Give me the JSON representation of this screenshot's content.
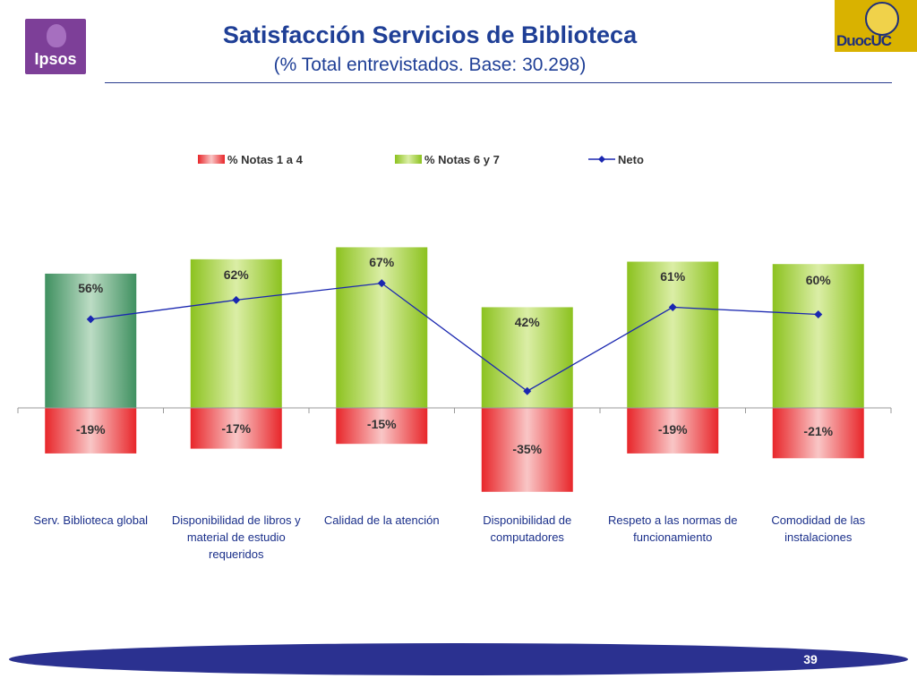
{
  "header": {
    "title": "Satisfacción Servicios de Biblioteca",
    "subtitle": "(% Total entrevistados. Base: 30.298)"
  },
  "logos": {
    "left": "Ipsos",
    "right": "DuocUC"
  },
  "footer": {
    "page_number": "39"
  },
  "colors": {
    "title": "#1f3f96",
    "positive_bar": "#8cc21f",
    "positive_bar_first": "#3f9060",
    "negative_bar": "#e8262a",
    "neto_line": "#1a27b0",
    "footer": "#2b3190"
  },
  "chart_data": {
    "type": "bar",
    "title": "",
    "xlabel": "",
    "ylabel": "",
    "categories": [
      "Serv. Biblioteca global",
      "Disponibilidad de libros y material de estudio requeridos",
      "Calidad de la atención",
      "Disponibilidad de computadores",
      "Respeto a las normas de funcionamiento",
      "Comodidad de las instalaciones"
    ],
    "series": [
      {
        "name": "% Notas 1 a 4",
        "kind": "bar",
        "values": [
          -19,
          -17,
          -15,
          -35,
          -19,
          -21
        ],
        "labels": [
          "-19%",
          "-17%",
          "-15%",
          "-35%",
          "-19%",
          "-21%"
        ]
      },
      {
        "name": "% Notas 6 y 7",
        "kind": "bar",
        "values": [
          56,
          62,
          67,
          42,
          61,
          60
        ],
        "labels": [
          "56%",
          "62%",
          "67%",
          "42%",
          "61%",
          "60%"
        ]
      },
      {
        "name": "Neto",
        "kind": "line",
        "values": [
          37,
          45,
          52,
          7,
          42,
          39
        ]
      }
    ],
    "ylim": [
      -38,
      72
    ],
    "grid": false,
    "legend_position": "top"
  }
}
